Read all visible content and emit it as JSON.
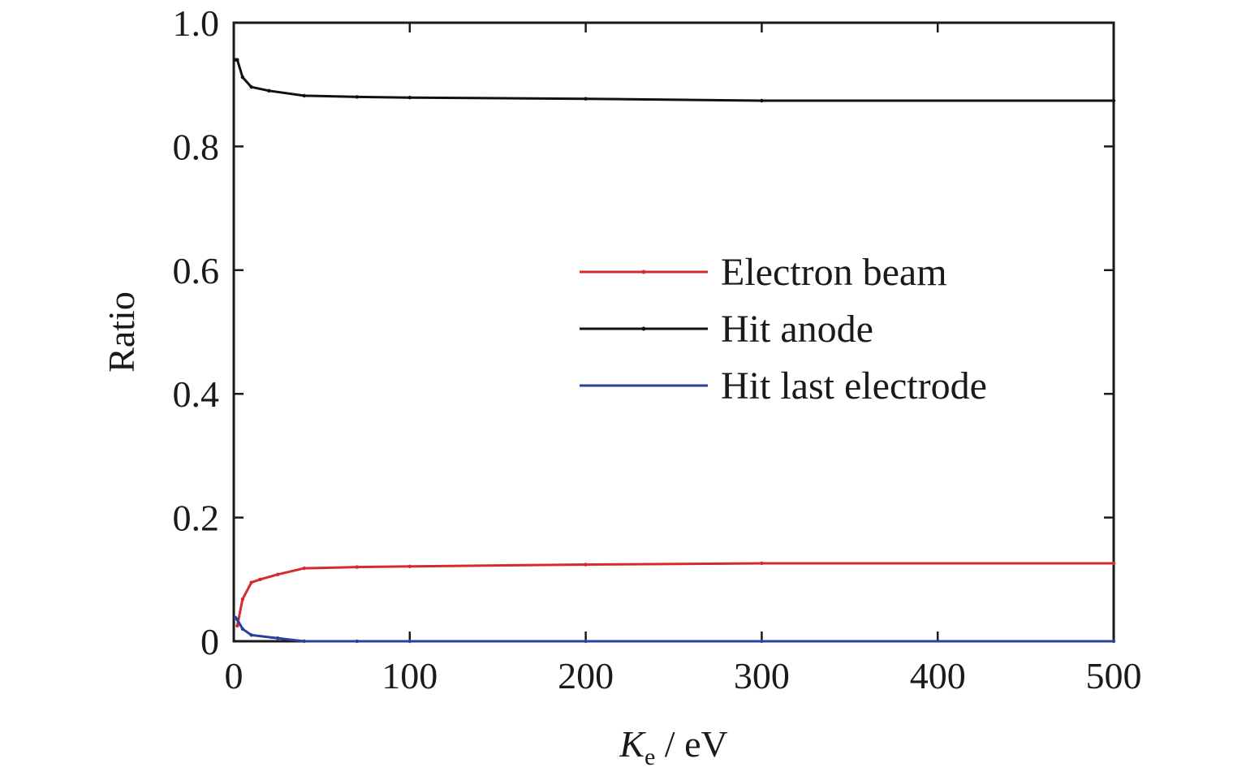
{
  "chart_data": {
    "type": "line",
    "title": "",
    "xlabel_main": "K",
    "xlabel_sub": "e",
    "xlabel_unit": " / eV",
    "ylabel": "Ratio",
    "xlim": [
      0,
      500
    ],
    "ylim": [
      0,
      1.0
    ],
    "xticks": [
      0,
      100,
      200,
      300,
      400,
      500
    ],
    "xtick_labels": [
      "0",
      "100",
      "200",
      "300",
      "400",
      "500"
    ],
    "yticks": [
      0,
      0.2,
      0.4,
      0.6,
      0.8,
      1.0
    ],
    "ytick_labels": [
      "0",
      "0.2",
      "0.4",
      "0.6",
      "0.8",
      "1.0"
    ],
    "grid": false,
    "legend_position": "center-right",
    "series": [
      {
        "name": "Electron beam",
        "color": "#d62a2f",
        "x": [
          2,
          5,
          10,
          15,
          25,
          40,
          70,
          100,
          200,
          300,
          500
        ],
        "y": [
          0.025,
          0.068,
          0.095,
          0.1,
          0.108,
          0.118,
          0.12,
          0.121,
          0.124,
          0.126,
          0.126
        ]
      },
      {
        "name": "Hit anode",
        "color": "#111111",
        "x": [
          1,
          2,
          5,
          10,
          20,
          40,
          70,
          100,
          200,
          300,
          500
        ],
        "y": [
          0.94,
          0.94,
          0.912,
          0.896,
          0.89,
          0.882,
          0.88,
          0.879,
          0.877,
          0.874,
          0.874
        ]
      },
      {
        "name": "Hit last electrode",
        "color": "#2b3f9c",
        "x": [
          1,
          2,
          5,
          10,
          25,
          40,
          70,
          100,
          200,
          300,
          500
        ],
        "y": [
          0.038,
          0.035,
          0.02,
          0.01,
          0.005,
          0.0,
          0.0,
          0.0,
          0.0,
          0.0,
          0.0
        ]
      }
    ]
  }
}
